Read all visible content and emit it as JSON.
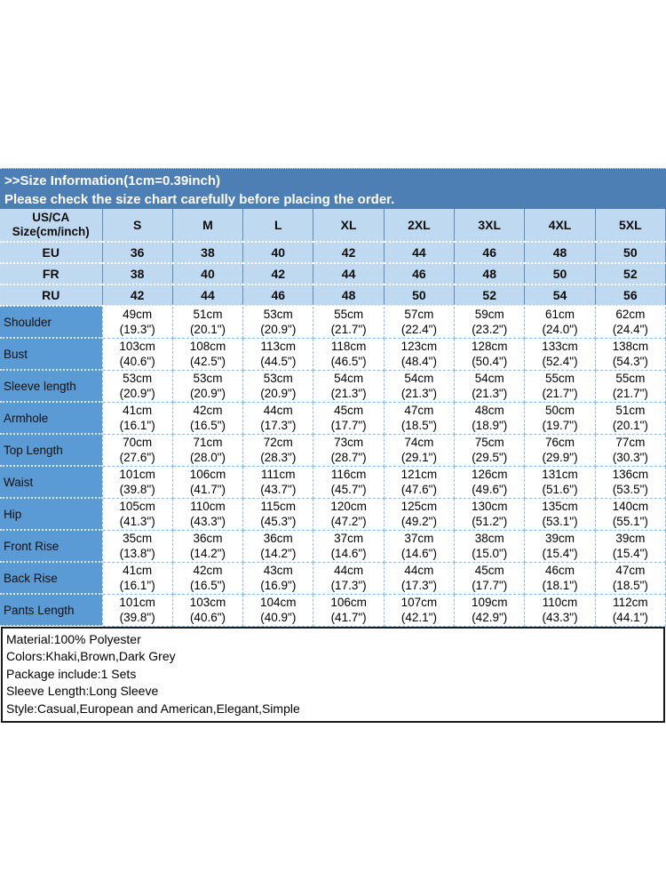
{
  "banner": {
    "line1": ">>Size Information(1cm=0.39inch)",
    "line2": "Please check the size chart carefully before placing the order."
  },
  "table": {
    "corner_line1": "US/CA",
    "corner_line2": "Size(cm/inch)",
    "size_headers": [
      "S",
      "M",
      "L",
      "XL",
      "2XL",
      "3XL",
      "4XL",
      "5XL"
    ],
    "region_rows": [
      {
        "label": "EU",
        "values": [
          "36",
          "38",
          "40",
          "42",
          "44",
          "46",
          "48",
          "50"
        ]
      },
      {
        "label": "FR",
        "values": [
          "38",
          "40",
          "42",
          "44",
          "46",
          "48",
          "50",
          "52"
        ]
      },
      {
        "label": "RU",
        "values": [
          "42",
          "44",
          "46",
          "48",
          "50",
          "52",
          "54",
          "56"
        ]
      }
    ],
    "measurement_rows": [
      {
        "label": "Shoulder",
        "values": [
          {
            "cm": "49cm",
            "inch": "(19.3\")"
          },
          {
            "cm": "51cm",
            "inch": "(20.1\")"
          },
          {
            "cm": "53cm",
            "inch": "(20.9\")"
          },
          {
            "cm": "55cm",
            "inch": "(21.7\")"
          },
          {
            "cm": "57cm",
            "inch": "(22.4\")"
          },
          {
            "cm": "59cm",
            "inch": "(23.2\")"
          },
          {
            "cm": "61cm",
            "inch": "(24.0\")"
          },
          {
            "cm": "62cm",
            "inch": "(24.4\")"
          }
        ]
      },
      {
        "label": "Bust",
        "values": [
          {
            "cm": "103cm",
            "inch": "(40.6\")"
          },
          {
            "cm": "108cm",
            "inch": "(42.5\")"
          },
          {
            "cm": "113cm",
            "inch": "(44.5\")"
          },
          {
            "cm": "118cm",
            "inch": "(46.5\")"
          },
          {
            "cm": "123cm",
            "inch": "(48.4\")"
          },
          {
            "cm": "128cm",
            "inch": "(50.4\")"
          },
          {
            "cm": "133cm",
            "inch": "(52.4\")"
          },
          {
            "cm": "138cm",
            "inch": "(54.3\")"
          }
        ]
      },
      {
        "label": "Sleeve length",
        "values": [
          {
            "cm": "53cm",
            "inch": "(20.9\")"
          },
          {
            "cm": "53cm",
            "inch": "(20.9\")"
          },
          {
            "cm": "53cm",
            "inch": "(20.9\")"
          },
          {
            "cm": "54cm",
            "inch": "(21.3\")"
          },
          {
            "cm": "54cm",
            "inch": "(21.3\")"
          },
          {
            "cm": "54cm",
            "inch": "(21.3\")"
          },
          {
            "cm": "55cm",
            "inch": "(21.7\")"
          },
          {
            "cm": "55cm",
            "inch": "(21.7\")"
          }
        ]
      },
      {
        "label": "Armhole",
        "values": [
          {
            "cm": "41cm",
            "inch": "(16.1\")"
          },
          {
            "cm": "42cm",
            "inch": "(16.5\")"
          },
          {
            "cm": "44cm",
            "inch": "(17.3\")"
          },
          {
            "cm": "45cm",
            "inch": "(17.7\")"
          },
          {
            "cm": "47cm",
            "inch": "(18.5\")"
          },
          {
            "cm": "48cm",
            "inch": "(18.9\")"
          },
          {
            "cm": "50cm",
            "inch": "(19.7\")"
          },
          {
            "cm": "51cm",
            "inch": "(20.1\")"
          }
        ]
      },
      {
        "label": "Top Length",
        "values": [
          {
            "cm": "70cm",
            "inch": "(27.6\")"
          },
          {
            "cm": "71cm",
            "inch": "(28.0\")"
          },
          {
            "cm": "72cm",
            "inch": "(28.3\")"
          },
          {
            "cm": "73cm",
            "inch": "(28.7\")"
          },
          {
            "cm": "74cm",
            "inch": "(29.1\")"
          },
          {
            "cm": "75cm",
            "inch": "(29.5\")"
          },
          {
            "cm": "76cm",
            "inch": "(29.9\")"
          },
          {
            "cm": "77cm",
            "inch": "(30.3\")"
          }
        ]
      },
      {
        "label": "Waist",
        "values": [
          {
            "cm": "101cm",
            "inch": "(39.8\")"
          },
          {
            "cm": "106cm",
            "inch": "(41.7\")"
          },
          {
            "cm": "111cm",
            "inch": "(43.7\")"
          },
          {
            "cm": "116cm",
            "inch": "(45.7\")"
          },
          {
            "cm": "121cm",
            "inch": "(47.6\")"
          },
          {
            "cm": "126cm",
            "inch": "(49.6\")"
          },
          {
            "cm": "131cm",
            "inch": "(51.6\")"
          },
          {
            "cm": "136cm",
            "inch": "(53.5\")"
          }
        ]
      },
      {
        "label": "Hip",
        "values": [
          {
            "cm": "105cm",
            "inch": "(41.3\")"
          },
          {
            "cm": "110cm",
            "inch": "(43.3\")"
          },
          {
            "cm": "115cm",
            "inch": "(45.3\")"
          },
          {
            "cm": "120cm",
            "inch": "(47.2\")"
          },
          {
            "cm": "125cm",
            "inch": "(49.2\")"
          },
          {
            "cm": "130cm",
            "inch": "(51.2\")"
          },
          {
            "cm": "135cm",
            "inch": "(53.1\")"
          },
          {
            "cm": "140cm",
            "inch": "(55.1\")"
          }
        ]
      },
      {
        "label": "Front Rise",
        "values": [
          {
            "cm": "35cm",
            "inch": "(13.8\")"
          },
          {
            "cm": "36cm",
            "inch": "(14.2\")"
          },
          {
            "cm": "36cm",
            "inch": "(14.2\")"
          },
          {
            "cm": "37cm",
            "inch": "(14.6\")"
          },
          {
            "cm": "37cm",
            "inch": "(14.6\")"
          },
          {
            "cm": "38cm",
            "inch": "(15.0\")"
          },
          {
            "cm": "39cm",
            "inch": "(15.4\")"
          },
          {
            "cm": "39cm",
            "inch": "(15.4\")"
          }
        ]
      },
      {
        "label": "Back Rise",
        "values": [
          {
            "cm": "41cm",
            "inch": "(16.1\")"
          },
          {
            "cm": "42cm",
            "inch": "(16.5\")"
          },
          {
            "cm": "43cm",
            "inch": "(16.9\")"
          },
          {
            "cm": "44cm",
            "inch": "(17.3\")"
          },
          {
            "cm": "44cm",
            "inch": "(17.3\")"
          },
          {
            "cm": "45cm",
            "inch": "(17.7\")"
          },
          {
            "cm": "46cm",
            "inch": "(18.1\")"
          },
          {
            "cm": "47cm",
            "inch": "(18.5\")"
          }
        ]
      },
      {
        "label": "Pants Length",
        "values": [
          {
            "cm": "101cm",
            "inch": "(39.8\")"
          },
          {
            "cm": "103cm",
            "inch": "(40.6\")"
          },
          {
            "cm": "104cm",
            "inch": "(40.9\")"
          },
          {
            "cm": "106cm",
            "inch": "(41.7\")"
          },
          {
            "cm": "107cm",
            "inch": "(42.1\")"
          },
          {
            "cm": "109cm",
            "inch": "(42.9\")"
          },
          {
            "cm": "110cm",
            "inch": "(43.3\")"
          },
          {
            "cm": "112cm",
            "inch": "(44.1\")"
          }
        ]
      }
    ]
  },
  "details": [
    "Material:100% Polyester",
    "Colors:Khaki,Brown,Dark Grey",
    "Package include:1 Sets",
    "Sleeve Length:Long Sleeve",
    "Style:Casual,European and American,Elegant,Simple"
  ],
  "colors": {
    "banner_bg": "#4d7fb5",
    "header_bg": "#bfdaf0",
    "label_bg": "#5b9bd5",
    "grid_dash": "#8fbadf",
    "header_grid": "#5f8cba",
    "box_border": "#1a1a1a"
  }
}
